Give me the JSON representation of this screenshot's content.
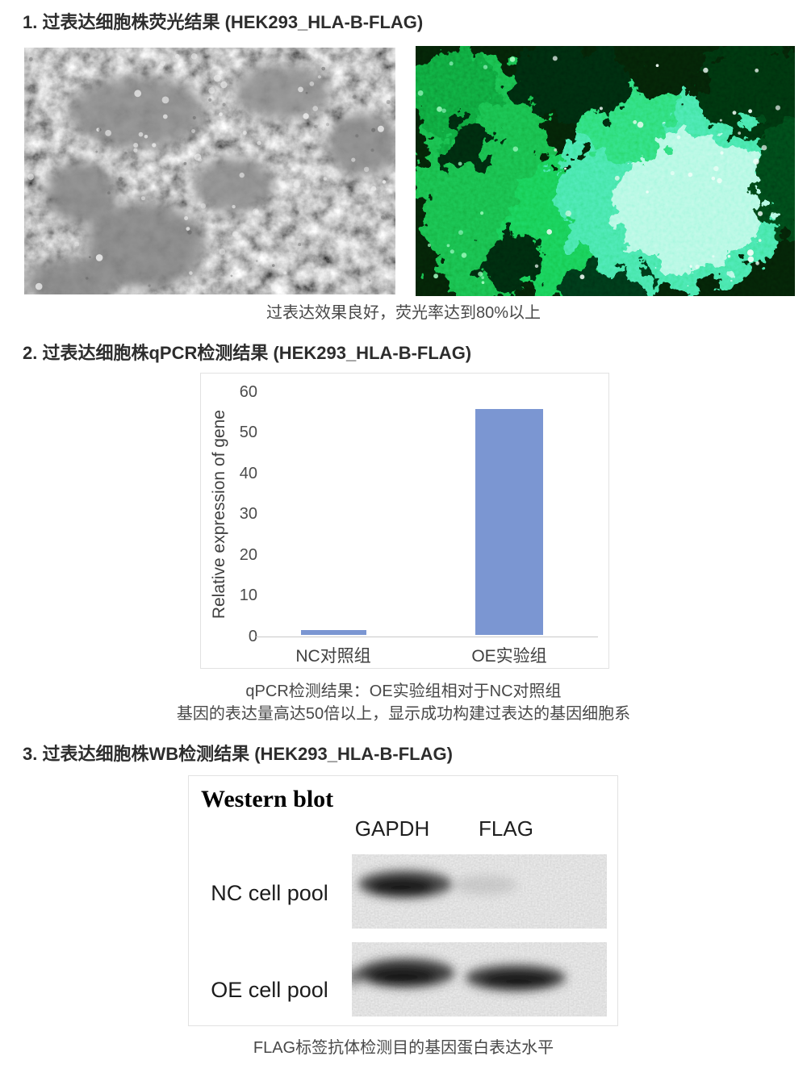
{
  "section_fluorescence": {
    "title": "1. 过表达细胞株荧光结果 (HEK293_HLA-B-FLAG)",
    "caption": "过表达效果良好，荧光率达到80%以上",
    "images": [
      {
        "name": "phase-contrast-micrograph",
        "description": "brightfield micrograph of cells"
      },
      {
        "name": "fluorescence-micrograph",
        "description": "green fluorescence micrograph of cells"
      }
    ]
  },
  "section_qpcr": {
    "title": "2. 过表达细胞株qPCR检测结果 (HEK293_HLA-B-FLAG)",
    "caption_line1": "qPCR检测结果：OE实验组相对于NC对照组",
    "caption_line2": "基因的表达量高达50倍以上，显示成功构建过表达的基因细胞系"
  },
  "chart_data": {
    "type": "bar",
    "categories": [
      "NC对照组",
      "OE实验组"
    ],
    "values": [
      1.2,
      55.5
    ],
    "title": "",
    "xlabel": "",
    "ylabel": "Relative expression of gene",
    "ylim": [
      0,
      60
    ],
    "yticks": [
      0,
      10,
      20,
      30,
      40,
      50,
      60
    ],
    "bar_color": "#7b96d2",
    "grid": false,
    "legend": false
  },
  "section_wb": {
    "title": "3. 过表达细胞株WB检测结果 (HEK293_HLA-B-FLAG)",
    "panel_title": "Western blot",
    "column_headers": [
      "GAPDH",
      "FLAG"
    ],
    "row_labels": [
      "NC cell pool",
      "OE cell pool"
    ],
    "band_pattern": {
      "NC_cell_pool": {
        "GAPDH": "strong band",
        "FLAG": "no band"
      },
      "OE_cell_pool": {
        "GAPDH": "strong band",
        "FLAG": "strong band"
      }
    },
    "caption": "FLAG标签抗体检测目的基因蛋白表达水平"
  },
  "colors": {
    "bar_fill": "#7b96d2",
    "axis_line": "#c9c9c9",
    "panel_border": "#e2e2e2",
    "heading_text": "#2d2d2d",
    "caption_text": "#484848",
    "blot_strip_bg": "#bcbcbc",
    "fluorescence_green": "#19d154",
    "fluorescence_cyan": "#8cf5d6"
  }
}
